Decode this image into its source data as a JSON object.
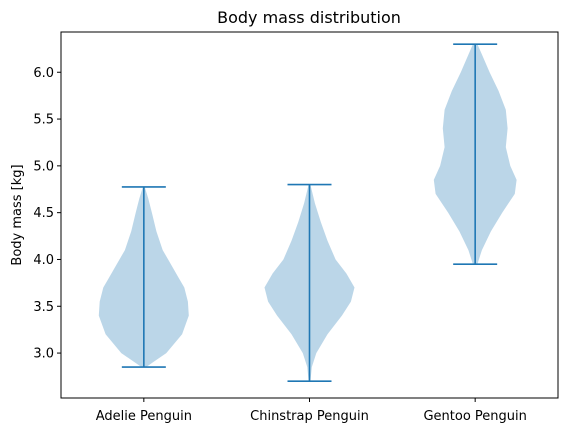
{
  "chart_data": {
    "type": "violin",
    "title": "Body mass distribution",
    "xlabel": "",
    "ylabel": "Body mass [kg]",
    "categories": [
      "Adelie Penguin",
      "Chinstrap Penguin",
      "Gentoo Penguin"
    ],
    "ylim": [
      2.52,
      6.43
    ],
    "yticks": [
      3.0,
      3.5,
      4.0,
      4.5,
      5.0,
      5.5,
      6.0
    ],
    "ytick_labels": [
      "3.0",
      "3.5",
      "4.0",
      "4.5",
      "5.0",
      "5.5",
      "6.0"
    ],
    "grid": false,
    "colors": {
      "body": "#1f77b4",
      "line": "#1f77b4",
      "axis": "#000000"
    },
    "series": [
      {
        "min": 2.85,
        "max": 4.775,
        "density": [
          [
            2.85,
            0.05
          ],
          [
            2.9,
            0.2
          ],
          [
            3.0,
            0.5
          ],
          [
            3.2,
            0.85
          ],
          [
            3.4,
            1.0
          ],
          [
            3.55,
            0.98
          ],
          [
            3.7,
            0.9
          ],
          [
            3.8,
            0.78
          ],
          [
            3.95,
            0.6
          ],
          [
            4.1,
            0.42
          ],
          [
            4.3,
            0.28
          ],
          [
            4.5,
            0.18
          ],
          [
            4.65,
            0.1
          ],
          [
            4.775,
            0.02
          ]
        ]
      },
      {
        "min": 2.7,
        "max": 4.8,
        "density": [
          [
            2.7,
            0.02
          ],
          [
            2.85,
            0.05
          ],
          [
            3.0,
            0.15
          ],
          [
            3.2,
            0.4
          ],
          [
            3.4,
            0.72
          ],
          [
            3.55,
            0.92
          ],
          [
            3.7,
            1.0
          ],
          [
            3.85,
            0.82
          ],
          [
            4.0,
            0.58
          ],
          [
            4.2,
            0.4
          ],
          [
            4.4,
            0.25
          ],
          [
            4.6,
            0.12
          ],
          [
            4.8,
            0.02
          ]
        ]
      },
      {
        "min": 3.95,
        "max": 6.3,
        "density": [
          [
            3.95,
            0.05
          ],
          [
            4.1,
            0.15
          ],
          [
            4.3,
            0.35
          ],
          [
            4.5,
            0.6
          ],
          [
            4.7,
            0.88
          ],
          [
            4.85,
            0.92
          ],
          [
            5.0,
            0.78
          ],
          [
            5.2,
            0.68
          ],
          [
            5.4,
            0.72
          ],
          [
            5.6,
            0.68
          ],
          [
            5.8,
            0.52
          ],
          [
            6.0,
            0.32
          ],
          [
            6.2,
            0.14
          ],
          [
            6.3,
            0.05
          ]
        ]
      }
    ]
  }
}
